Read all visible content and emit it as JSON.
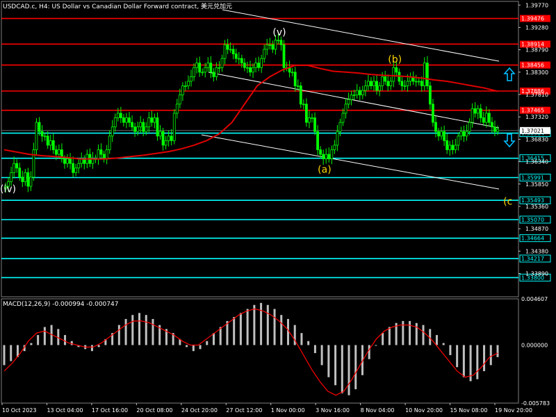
{
  "title": "USDCAD.c, H4:  US Dollar vs Canadian Dollar Forward contract, 美元兑加元",
  "macd_label": "MACD(12,26,9) -0.000994 -0.000747",
  "colors": {
    "background": "#000000",
    "candle": "#00ff00",
    "resistance": "#ff0000",
    "support": "#00ffff",
    "ma": "#e00000",
    "macd_hist": "#c0c0c0",
    "macd_signal": "#ff0000",
    "channel": "#ffffff",
    "wave_white": "#ffffff",
    "wave_yellow": "#ffd700",
    "arrow": "#00bfff"
  },
  "chart_data": [
    {
      "type": "candlestick",
      "title": "USDCAD.c, H4",
      "ylim": [
        1.3338,
        1.3985
      ],
      "y_ticks": [
        "1.39770",
        "1.39280",
        "1.38790",
        "1.38300",
        "1.37810",
        "1.37320",
        "1.36830",
        "1.36340",
        "1.35850",
        "1.35360",
        "1.34870",
        "1.34380",
        "1.33890"
      ],
      "x_ticks": [
        "10 Oct 2023",
        "13 Oct 04:00",
        "17 Oct 16:00",
        "20 Oct 08:00",
        "24 Oct 20:00",
        "27 Oct 12:00",
        "1 Nov 00:00",
        "3 Nov 16:00",
        "8 Nov 04:00",
        "10 Nov 20:00",
        "15 Nov 08:00",
        "19 Nov 20:00"
      ],
      "resistance_levels": [
        {
          "value": 1.39476,
          "label": "1.39476"
        },
        {
          "value": 1.38914,
          "label": "1.38914"
        },
        {
          "value": 1.38456,
          "label": "1.38456"
        },
        {
          "value": 1.37886,
          "label": "1.37886"
        },
        {
          "value": 1.37465,
          "label": "1.37465"
        }
      ],
      "support_levels": [
        {
          "value": 1.36964,
          "label": "1.36964"
        },
        {
          "value": 1.36415,
          "label": "1.36415"
        },
        {
          "value": 1.35991,
          "label": "1.35991"
        },
        {
          "value": 1.35493,
          "label": "1.35493"
        },
        {
          "value": 1.3507,
          "label": "1.35070"
        },
        {
          "value": 1.34664,
          "label": "1.34664"
        },
        {
          "value": 1.34217,
          "label": "1.34217"
        },
        {
          "value": 1.338,
          "label": "1.33800"
        }
      ],
      "current_price": {
        "value": 1.37021,
        "label": "1.37021"
      },
      "wave_labels": [
        {
          "text": "(iv)",
          "index": 0,
          "price": 1.3575,
          "color": "white"
        },
        {
          "text": "(v)",
          "index": 97,
          "price": 1.3918,
          "color": "white"
        },
        {
          "text": "(a)",
          "index": 113,
          "price": 1.3617,
          "color": "yellow"
        },
        {
          "text": "(b)",
          "index": 138,
          "price": 1.3859,
          "color": "yellow"
        },
        {
          "text": "(c",
          "index": 179,
          "price": 1.3547,
          "color": "yellow"
        }
      ],
      "close": [
        1.358,
        1.359,
        1.361,
        1.363,
        1.362,
        1.36,
        1.359,
        1.361,
        1.358,
        1.36,
        1.366,
        1.372,
        1.37,
        1.369,
        1.369,
        1.367,
        1.368,
        1.366,
        1.365,
        1.366,
        1.364,
        1.363,
        1.364,
        1.363,
        1.361,
        1.362,
        1.363,
        1.364,
        1.363,
        1.365,
        1.363,
        1.364,
        1.364,
        1.366,
        1.365,
        1.364,
        1.366,
        1.369,
        1.371,
        1.373,
        1.374,
        1.373,
        1.372,
        1.373,
        1.372,
        1.371,
        1.37,
        1.371,
        1.372,
        1.37,
        1.371,
        1.373,
        1.372,
        1.373,
        1.369,
        1.37,
        1.367,
        1.368,
        1.369,
        1.368,
        1.374,
        1.376,
        1.378,
        1.38,
        1.38,
        1.381,
        1.382,
        1.384,
        1.385,
        1.383,
        1.383,
        1.384,
        1.385,
        1.383,
        1.382,
        1.384,
        1.384,
        1.386,
        1.389,
        1.388,
        1.388,
        1.387,
        1.386,
        1.386,
        1.385,
        1.384,
        1.384,
        1.383,
        1.384,
        1.385,
        1.384,
        1.386,
        1.388,
        1.389,
        1.389,
        1.388,
        1.39,
        1.39,
        1.389,
        1.384,
        1.384,
        1.383,
        1.383,
        1.38,
        1.38,
        1.376,
        1.376,
        1.372,
        1.373,
        1.373,
        1.37,
        1.366,
        1.365,
        1.364,
        1.365,
        1.364,
        1.366,
        1.367,
        1.37,
        1.372,
        1.374,
        1.376,
        1.377,
        1.378,
        1.378,
        1.379,
        1.378,
        1.379,
        1.38,
        1.381,
        1.38,
        1.381,
        1.379,
        1.38,
        1.382,
        1.381,
        1.38,
        1.381,
        1.384,
        1.383,
        1.381,
        1.38,
        1.38,
        1.381,
        1.382,
        1.381,
        1.381,
        1.381,
        1.38,
        1.385,
        1.38,
        1.376,
        1.372,
        1.37,
        1.369,
        1.37,
        1.368,
        1.366,
        1.367,
        1.366,
        1.367,
        1.369,
        1.37,
        1.369,
        1.37,
        1.372,
        1.375,
        1.374,
        1.375,
        1.373,
        1.372,
        1.374,
        1.372,
        1.371,
        1.37,
        1.3705
      ],
      "ma": [
        1.366,
        1.3655,
        1.365,
        1.3647,
        1.3645,
        1.3643,
        1.364,
        1.364,
        1.364,
        1.3642,
        1.3645,
        1.3648,
        1.3652,
        1.3656,
        1.3662,
        1.367,
        1.368,
        1.3695,
        1.372,
        1.376,
        1.38,
        1.382,
        1.3835,
        1.3845,
        1.3845,
        1.3838,
        1.3832,
        1.383,
        1.3828,
        1.3825,
        1.3823,
        1.3822,
        1.382,
        1.3817,
        1.3813,
        1.381,
        1.3805,
        1.38,
        1.3795,
        1.3788
      ],
      "macd_hist": [
        -0.002,
        -0.0016,
        -0.0012,
        -0.0006,
        0.0002,
        0.001,
        0.0018,
        0.002,
        0.0016,
        0.001,
        0.0004,
        -0.0002,
        -0.0004,
        -0.0006,
        -0.0002,
        0.0006,
        0.0012,
        0.002,
        0.0026,
        0.003,
        0.0032,
        0.003,
        0.0026,
        0.002,
        0.0016,
        0.0012,
        0.0006,
        -0.0002,
        -0.0006,
        -0.0004,
        0.0004,
        0.0012,
        0.0018,
        0.0024,
        0.0028,
        0.0032,
        0.0036,
        0.004,
        0.0042,
        0.004,
        0.0036,
        0.003,
        0.0026,
        0.002,
        0.0012,
        0.0004,
        -0.0008,
        -0.002,
        -0.0032,
        -0.004,
        -0.0048,
        -0.005,
        -0.0044,
        -0.003,
        -0.0014,
        0.0,
        0.0012,
        0.0018,
        0.0022,
        0.0024,
        0.0024,
        0.0022,
        0.002,
        0.0016,
        0.001,
        0.0002,
        -0.001,
        -0.0022,
        -0.0032,
        -0.0036,
        -0.0034,
        -0.0026,
        -0.002,
        -0.0012
      ],
      "macd_signal": [
        -0.0026,
        -0.0018,
        -0.0008,
        0.0004,
        0.0012,
        0.0014,
        0.001,
        0.0006,
        0.0002,
        0.0,
        -0.0002,
        -0.0002,
        0.0002,
        0.0008,
        0.0014,
        0.002,
        0.0024,
        0.0024,
        0.0022,
        0.0018,
        0.0014,
        0.001,
        0.0004,
        0.0,
        0.0,
        0.0006,
        0.0012,
        0.0018,
        0.0024,
        0.003,
        0.0034,
        0.0036,
        0.0034,
        0.003,
        0.0024,
        0.0016,
        0.0004,
        -0.001,
        -0.0024,
        -0.0036,
        -0.0046,
        -0.005,
        -0.0046,
        -0.0034,
        -0.002,
        -0.0006,
        0.0006,
        0.0014,
        0.0018,
        0.002,
        0.002,
        0.0018,
        0.0012,
        0.0004,
        -0.0006,
        -0.0016,
        -0.0026,
        -0.0032,
        -0.003,
        -0.0022,
        -0.0012,
        -0.0008
      ],
      "macd_ylim": [
        -0.005783,
        0.004607
      ],
      "macd_ticks": [
        "0.004607",
        "0.000000",
        "-0.005783"
      ]
    }
  ]
}
